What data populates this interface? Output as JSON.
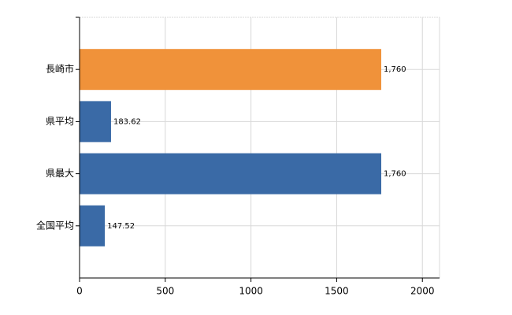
{
  "chart_data": {
    "type": "barh",
    "categories": [
      "長崎市",
      "県平均",
      "県最大",
      "全国平均"
    ],
    "values": [
      1760,
      183.62,
      1760,
      147.52
    ],
    "value_labels": [
      "1,760",
      "183.62",
      "1,760",
      "147.52"
    ],
    "colors": [
      "#f0923a",
      "#3a6aa6",
      "#3a6aa6",
      "#3a6aa6"
    ],
    "xlim": [
      0,
      2100
    ],
    "xticks": [
      0,
      500,
      1000,
      1500,
      2000
    ],
    "grid": true
  }
}
